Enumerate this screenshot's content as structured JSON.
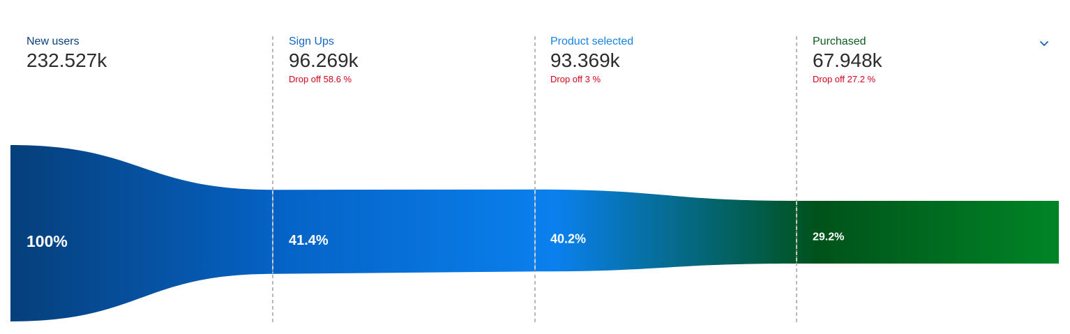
{
  "chart_data": {
    "type": "funnel",
    "stages": [
      {
        "name": "New users",
        "value_label": "232.527k",
        "value": 232527,
        "percent_label": "100%",
        "percent": 100,
        "drop_label": ""
      },
      {
        "name": "Sign Ups",
        "value_label": "96.269k",
        "value": 96269,
        "percent_label": "41.4%",
        "percent": 41.4,
        "drop_label": "Drop off 58.6 %"
      },
      {
        "name": "Product selected",
        "value_label": "93.369k",
        "value": 93369,
        "percent_label": "40.2%",
        "percent": 40.2,
        "drop_label": "Drop off 3 %"
      },
      {
        "name": "Purchased",
        "value_label": "67.948k",
        "value": 67948,
        "percent_label": "29.2%",
        "percent": 29.2,
        "drop_label": "Drop off 27.2 %"
      }
    ]
  },
  "colors": {
    "stage_names": [
      "#0b3f7a",
      "#1068c4",
      "#1584e0",
      "#0d5a1f"
    ],
    "drop": "#d0021b",
    "gradient_stops": [
      "#063f7b",
      "#0563c6",
      "#0a80ee",
      "#00521a",
      "#008526"
    ],
    "divider": "#9a9a9a",
    "chevron": "#1a5fb4"
  },
  "icons": {
    "chevron": "chevron-down-icon"
  }
}
